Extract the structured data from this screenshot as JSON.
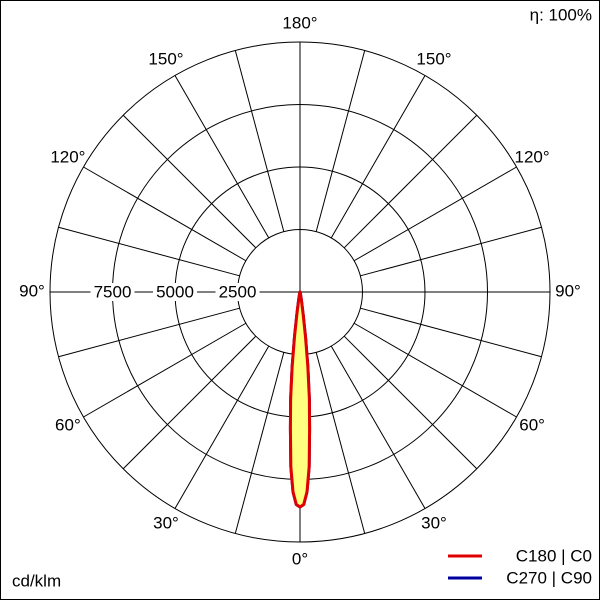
{
  "chart_data": {
    "type": "polar",
    "efficiency": "η: 100%",
    "unit": "cd/klm",
    "rlim": [
      0,
      10000
    ],
    "rticks": [
      2500,
      5000,
      7500
    ],
    "radial_step": 15,
    "angle_ticks": [
      {
        "value": 0,
        "label": "0°"
      },
      {
        "value": 30,
        "label": "30°"
      },
      {
        "value": 60,
        "label": "60°"
      },
      {
        "value": 90,
        "label": "90°"
      },
      {
        "value": 120,
        "label": "120°"
      },
      {
        "value": 150,
        "label": "150°"
      },
      {
        "value": 180,
        "label": "180°"
      }
    ],
    "x": [
      -20,
      -15,
      -10,
      -8,
      -7,
      -6,
      -5,
      -4,
      -3,
      -2,
      -1,
      0,
      1,
      2,
      3,
      4,
      5,
      6,
      7,
      8,
      10,
      15,
      20
    ],
    "fill_color": "#ffff80",
    "series": [
      {
        "name": "C270 | C90",
        "color": "#0000a0",
        "values": [
          0,
          50,
          300,
          900,
          1800,
          3000,
          4300,
          5500,
          7000,
          8000,
          8500,
          8600,
          8500,
          8000,
          7000,
          5500,
          4300,
          3000,
          1800,
          900,
          300,
          50,
          0
        ]
      },
      {
        "name": "C180 | C0",
        "color": "#e00000",
        "values": [
          0,
          50,
          300,
          900,
          1800,
          3000,
          4300,
          5500,
          7000,
          8000,
          8500,
          8600,
          8500,
          8000,
          7000,
          5500,
          4300,
          3000,
          1800,
          900,
          300,
          50,
          0
        ]
      }
    ]
  }
}
